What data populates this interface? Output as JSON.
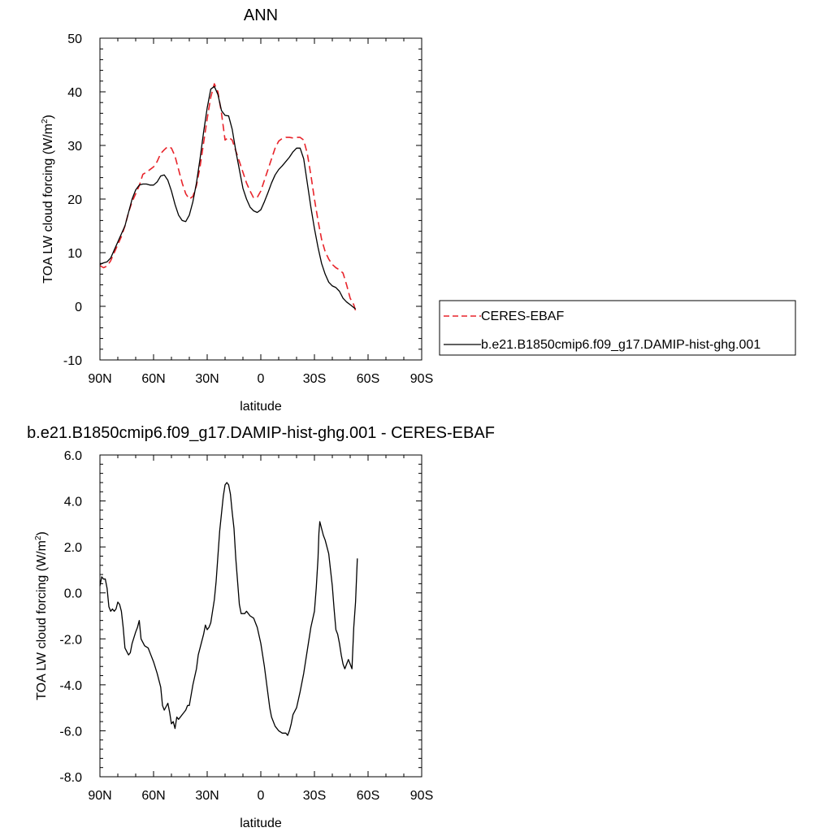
{
  "chart_data": [
    {
      "type": "line",
      "title": "ANN",
      "xlabel": "latitude",
      "ylabel_main": "TOA LW cloud forcing (W/m",
      "ylabel_sup": "2",
      "ylabel_close": ")",
      "xlim": [
        90,
        -90
      ],
      "ylim": [
        -10,
        50
      ],
      "x_ticks": [
        90,
        60,
        30,
        0,
        -30,
        -60,
        -90
      ],
      "x_tick_labels": [
        "90N",
        "60N",
        "30N",
        "0",
        "30S",
        "60S",
        "90S"
      ],
      "y_ticks": [
        -10,
        0,
        10,
        20,
        30,
        40,
        50
      ],
      "y_tick_labels": [
        "-10",
        "0",
        "10",
        "20",
        "30",
        "40",
        "50"
      ],
      "grid": false,
      "legend_position": "outside-right",
      "series": [
        {
          "name": "CERES-EBAF",
          "color": "#e8242b",
          "dashed": true,
          "points": [
            [
              90,
              7.6
            ],
            [
              88,
              7.2
            ],
            [
              86,
              7.5
            ],
            [
              84,
              8.5
            ],
            [
              82,
              10
            ],
            [
              80,
              11.5
            ],
            [
              78,
              13
            ],
            [
              76,
              15
            ],
            [
              74,
              17.5
            ],
            [
              72,
              19.5
            ],
            [
              70,
              21
            ],
            [
              68,
              22.5
            ],
            [
              66,
              24.6
            ],
            [
              64,
              25
            ],
            [
              62,
              25.5
            ],
            [
              60,
              26
            ],
            [
              58,
              27
            ],
            [
              56,
              28.5
            ],
            [
              54,
              29.2
            ],
            [
              52,
              29.8
            ],
            [
              50,
              29.5
            ],
            [
              48,
              28
            ],
            [
              46,
              25.5
            ],
            [
              44,
              23
            ],
            [
              42,
              21
            ],
            [
              40,
              20
            ],
            [
              38,
              20.5
            ],
            [
              36,
              22.5
            ],
            [
              34,
              26
            ],
            [
              32,
              30.5
            ],
            [
              30,
              35
            ],
            [
              28,
              39
            ],
            [
              26,
              41.5
            ],
            [
              24,
              40
            ],
            [
              22,
              36
            ],
            [
              20,
              31
            ],
            [
              18,
              31.5
            ],
            [
              16,
              31
            ],
            [
              14,
              29
            ],
            [
              12,
              27
            ],
            [
              10,
              25
            ],
            [
              8,
              23
            ],
            [
              6,
              21.5
            ],
            [
              4,
              20.2
            ],
            [
              2,
              20.3
            ],
            [
              0,
              21.5
            ],
            [
              -2,
              23.5
            ],
            [
              -4,
              25.5
            ],
            [
              -6,
              27.5
            ],
            [
              -8,
              29.5
            ],
            [
              -10,
              30.8
            ],
            [
              -12,
              31.3
            ],
            [
              -14,
              31.5
            ],
            [
              -16,
              31.5
            ],
            [
              -18,
              31.4
            ],
            [
              -20,
              31.5
            ],
            [
              -22,
              31.5
            ],
            [
              -24,
              31
            ],
            [
              -26,
              28.5
            ],
            [
              -28,
              24.5
            ],
            [
              -30,
              20
            ],
            [
              -32,
              16
            ],
            [
              -34,
              12.5
            ],
            [
              -36,
              10.2
            ],
            [
              -38,
              8.8
            ],
            [
              -40,
              7.8
            ],
            [
              -42,
              7.2
            ],
            [
              -44,
              6.8
            ],
            [
              -46,
              6.2
            ],
            [
              -48,
              4
            ],
            [
              -50,
              1.5
            ],
            [
              -52,
              0.3
            ],
            [
              -53,
              -0.8
            ]
          ]
        },
        {
          "name": "b.e21.B1850cmip6.f09_g17.DAMIP-hist-ghg.001",
          "color": "#000000",
          "dashed": false,
          "points": [
            [
              90,
              7.8
            ],
            [
              88,
              8.1
            ],
            [
              86,
              8.3
            ],
            [
              84,
              9
            ],
            [
              82,
              10.5
            ],
            [
              80,
              12
            ],
            [
              78,
              13.5
            ],
            [
              76,
              15
            ],
            [
              74,
              17.5
            ],
            [
              72,
              20
            ],
            [
              70,
              21.7
            ],
            [
              68,
              22.6
            ],
            [
              66,
              22.8
            ],
            [
              64,
              22.8
            ],
            [
              62,
              22.6
            ],
            [
              60,
              22.6
            ],
            [
              58,
              23.2
            ],
            [
              56,
              24.3
            ],
            [
              54,
              24.5
            ],
            [
              52,
              23.5
            ],
            [
              50,
              21.5
            ],
            [
              48,
              19
            ],
            [
              46,
              17
            ],
            [
              44,
              16
            ],
            [
              42,
              15.8
            ],
            [
              40,
              17
            ],
            [
              38,
              19.5
            ],
            [
              36,
              23
            ],
            [
              34,
              27.5
            ],
            [
              32,
              32.5
            ],
            [
              30,
              37
            ],
            [
              28,
              40.5
            ],
            [
              26,
              41
            ],
            [
              24,
              39.5
            ],
            [
              22,
              36.5
            ],
            [
              20,
              35.6
            ],
            [
              18,
              35.5
            ],
            [
              16,
              33
            ],
            [
              14,
              29
            ],
            [
              12,
              25.5
            ],
            [
              10,
              22
            ],
            [
              8,
              20
            ],
            [
              6,
              18.5
            ],
            [
              4,
              17.8
            ],
            [
              2,
              17.5
            ],
            [
              0,
              18
            ],
            [
              -2,
              19.5
            ],
            [
              -4,
              21.2
            ],
            [
              -6,
              23
            ],
            [
              -8,
              24.5
            ],
            [
              -10,
              25.5
            ],
            [
              -12,
              26.2
            ],
            [
              -14,
              27
            ],
            [
              -16,
              27.8
            ],
            [
              -18,
              28.8
            ],
            [
              -20,
              29.5
            ],
            [
              -22,
              29.5
            ],
            [
              -24,
              27.5
            ],
            [
              -26,
              23
            ],
            [
              -28,
              18.5
            ],
            [
              -30,
              14.5
            ],
            [
              -32,
              11
            ],
            [
              -34,
              8
            ],
            [
              -36,
              6
            ],
            [
              -38,
              4.5
            ],
            [
              -40,
              3.8
            ],
            [
              -42,
              3.5
            ],
            [
              -44,
              2.8
            ],
            [
              -46,
              1.5
            ],
            [
              -48,
              0.8
            ],
            [
              -50,
              0.3
            ],
            [
              -53,
              -0.5
            ]
          ]
        }
      ]
    },
    {
      "type": "line",
      "title": "b.e21.B1850cmip6.f09_g17.DAMIP-hist-ghg.001 - CERES-EBAF",
      "xlabel": "latitude",
      "ylabel_main": "TOA LW cloud forcing (W/m",
      "ylabel_sup": "2",
      "ylabel_close": ")",
      "xlim": [
        90,
        -90
      ],
      "ylim": [
        -8,
        6
      ],
      "x_ticks": [
        90,
        60,
        30,
        0,
        -30,
        -60,
        -90
      ],
      "x_tick_labels": [
        "90N",
        "60N",
        "30N",
        "0",
        "30S",
        "60S",
        "90S"
      ],
      "y_ticks": [
        -8,
        -6,
        -4,
        -2,
        0,
        2,
        4,
        6
      ],
      "y_tick_labels": [
        "-8.0",
        "-6.0",
        "-4.0",
        "-2.0",
        "0.0",
        "2.0",
        "4.0",
        "6.0"
      ],
      "grid": false,
      "series": [
        {
          "name": "",
          "color": "#000000",
          "dashed": false,
          "points": [
            [
              90,
              0.3
            ],
            [
              89,
              0.7
            ],
            [
              88,
              0.6
            ],
            [
              87,
              0.6
            ],
            [
              86,
              0.2
            ],
            [
              85,
              -0.6
            ],
            [
              84,
              -0.8
            ],
            [
              83,
              -0.7
            ],
            [
              82,
              -0.8
            ],
            [
              81,
              -0.7
            ],
            [
              80,
              -0.4
            ],
            [
              79,
              -0.5
            ],
            [
              78,
              -0.8
            ],
            [
              77,
              -1.5
            ],
            [
              76,
              -2.4
            ],
            [
              74,
              -2.7
            ],
            [
              73,
              -2.6
            ],
            [
              72,
              -2.2
            ],
            [
              70,
              -1.7
            ],
            [
              69,
              -1.5
            ],
            [
              68,
              -1.2
            ],
            [
              67,
              -2
            ],
            [
              65,
              -2.3
            ],
            [
              63,
              -2.4
            ],
            [
              62,
              -2.6
            ],
            [
              60,
              -3
            ],
            [
              58,
              -3.5
            ],
            [
              56,
              -4.1
            ],
            [
              55,
              -4.9
            ],
            [
              54,
              -5.1
            ],
            [
              52,
              -4.8
            ],
            [
              51,
              -5.2
            ],
            [
              50,
              -5.7
            ],
            [
              49,
              -5.6
            ],
            [
              48,
              -5.9
            ],
            [
              47,
              -5.4
            ],
            [
              46,
              -5.5
            ],
            [
              44,
              -5.3
            ],
            [
              42,
              -5.1
            ],
            [
              41,
              -4.9
            ],
            [
              40,
              -4.9
            ],
            [
              38,
              -4
            ],
            [
              36,
              -3.3
            ],
            [
              35,
              -2.7
            ],
            [
              34,
              -2.4
            ],
            [
              32,
              -1.8
            ],
            [
              31,
              -1.4
            ],
            [
              30,
              -1.6
            ],
            [
              29,
              -1.5
            ],
            [
              28,
              -1.3
            ],
            [
              26,
              -0.3
            ],
            [
              25,
              0.5
            ],
            [
              23,
              2.7
            ],
            [
              21,
              4.2
            ],
            [
              20,
              4.7
            ],
            [
              19,
              4.8
            ],
            [
              18,
              4.7
            ],
            [
              17,
              4.3
            ],
            [
              16,
              3.5
            ],
            [
              15,
              2.8
            ],
            [
              14,
              1.5
            ],
            [
              13,
              0.5
            ],
            [
              12,
              -0.5
            ],
            [
              11,
              -0.9
            ],
            [
              9,
              -0.9
            ],
            [
              8,
              -0.8
            ],
            [
              6,
              -1
            ],
            [
              4,
              -1.1
            ],
            [
              3,
              -1.3
            ],
            [
              2,
              -1.5
            ],
            [
              0,
              -2.2
            ],
            [
              -2,
              -3.2
            ],
            [
              -4,
              -4.4
            ],
            [
              -5,
              -5
            ],
            [
              -6,
              -5.4
            ],
            [
              -8,
              -5.8
            ],
            [
              -10,
              -6
            ],
            [
              -12,
              -6.1
            ],
            [
              -14,
              -6.1
            ],
            [
              -15,
              -6.2
            ],
            [
              -16,
              -6
            ],
            [
              -17,
              -5.7
            ],
            [
              -18,
              -5.3
            ],
            [
              -20,
              -5
            ],
            [
              -22,
              -4.3
            ],
            [
              -24,
              -3.5
            ],
            [
              -26,
              -2.5
            ],
            [
              -28,
              -1.5
            ],
            [
              -30,
              -0.8
            ],
            [
              -31,
              0.2
            ],
            [
              -32,
              1.5
            ],
            [
              -32.5,
              2.6
            ],
            [
              -33,
              3.1
            ],
            [
              -34,
              2.8
            ],
            [
              -35,
              2.5
            ],
            [
              -36,
              2.3
            ],
            [
              -38,
              1.7
            ],
            [
              -39,
              1
            ],
            [
              -40,
              0.3
            ],
            [
              -41,
              -0.7
            ],
            [
              -42,
              -1.6
            ],
            [
              -43,
              -1.8
            ],
            [
              -44,
              -2.2
            ],
            [
              -45,
              -2.7
            ],
            [
              -46,
              -3.1
            ],
            [
              -47,
              -3.3
            ],
            [
              -48,
              -3.1
            ],
            [
              -49,
              -2.9
            ],
            [
              -50,
              -3.1
            ],
            [
              -51,
              -3.3
            ],
            [
              -52,
              -1.5
            ],
            [
              -53,
              -0.4
            ],
            [
              -54,
              1.5
            ]
          ]
        }
      ]
    }
  ]
}
